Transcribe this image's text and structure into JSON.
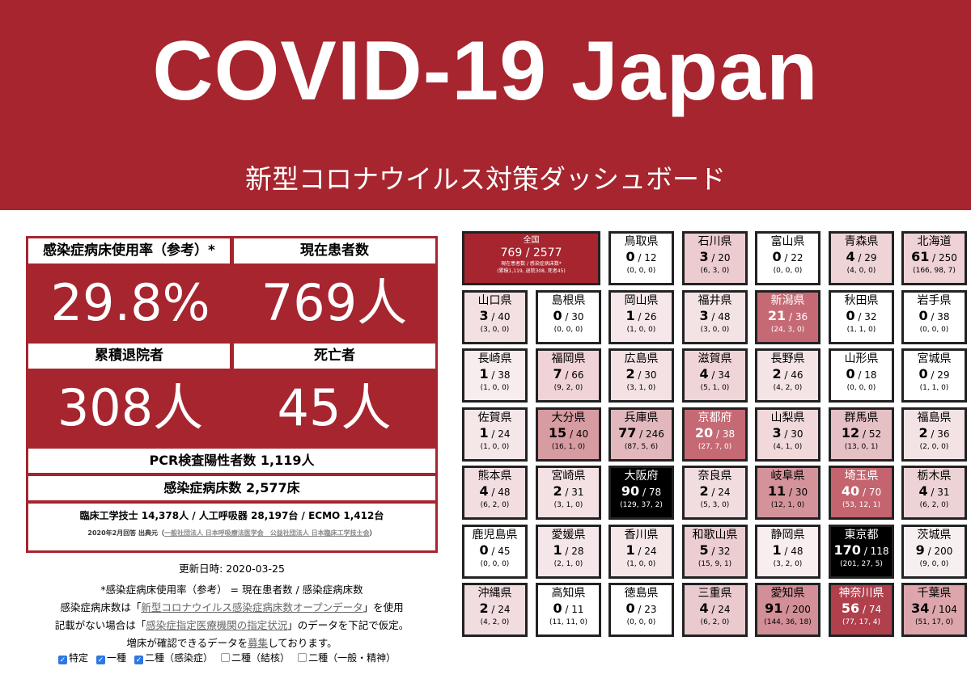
{
  "header": {
    "title": "COVID-19 Japan",
    "subtitle": "新型コロナウイルス対策ダッシュボード"
  },
  "stats": {
    "bed_rate_label": "感染症病床使用率（参考）*",
    "bed_rate_value": "29.8%",
    "current_patients_label": "現在患者数",
    "current_patients_value": "769人",
    "recovered_label": "累積退院者",
    "recovered_value": "308人",
    "deaths_label": "死亡者",
    "deaths_value": "45人",
    "pcr_line": "PCR検査陽性者数 1,119人",
    "beds_line": "感染症病床数 2,577床",
    "equipment_line": "臨床工学技士 14,378人 / 人工呼吸器 28,197台 / ECMO 1,412台",
    "source_prefix": "2020年2月回答 出典元（",
    "source_link": "一般社団法人 日本呼吸療法医学会　公益社団法人 日本臨床工学技士会",
    "source_suffix": "）"
  },
  "notes": {
    "updated": "更新日時: 2020-03-25",
    "line1": "*感染症病床使用率（参考） = 現在患者数 / 感染症病床数",
    "line2_prefix": "感染症病床数は「",
    "line2_link": "新型コロナウイルス感染症病床数オープンデータ",
    "line2_suffix": "」を使用",
    "line3_prefix": "記載がない場合は「",
    "line3_link": "感染症指定医療機関の指定状況",
    "line3_suffix": "」のデータを下記で仮定。",
    "line4_prefix": "増床が確認できるデータを",
    "line4_link": "募集",
    "line4_suffix": "しております。"
  },
  "checkboxes": [
    {
      "label": "特定",
      "checked": true
    },
    {
      "label": "一種",
      "checked": true
    },
    {
      "label": "二種（感染症）",
      "checked": true
    },
    {
      "label": "二種（結核）",
      "checked": false
    },
    {
      "label": "二種（一般・精神）",
      "checked": false
    }
  ],
  "national": {
    "name": "全国",
    "value": "769 / 2577",
    "caption": "現在患者数 / 感染症病床数*",
    "detail": "(累積1,119, 退院308, 死者45)"
  },
  "prefectures": [
    {
      "name": "鳥取県",
      "current": "0",
      "beds": "12",
      "detail": "(0, 0, 0)",
      "bg": "#ffffff",
      "fg": "#000000"
    },
    {
      "name": "石川県",
      "current": "3",
      "beds": "20",
      "detail": "(6, 3, 0)",
      "bg": "#ecccd0",
      "fg": "#000000"
    },
    {
      "name": "富山県",
      "current": "0",
      "beds": "22",
      "detail": "(0, 0, 0)",
      "bg": "#ffffff",
      "fg": "#000000"
    },
    {
      "name": "青森県",
      "current": "4",
      "beds": "29",
      "detail": "(4, 0, 0)",
      "bg": "#efd4d7",
      "fg": "#000000"
    },
    {
      "name": "北海道",
      "current": "61",
      "beds": "250",
      "detail": "(166, 98, 7)",
      "bg": "#eed2d5",
      "fg": "#000000"
    },
    {
      "name": "山口県",
      "current": "3",
      "beds": "40",
      "detail": "(3, 0, 0)",
      "bg": "#f3e0e2",
      "fg": "#000000"
    },
    {
      "name": "島根県",
      "current": "0",
      "beds": "30",
      "detail": "(0, 0, 0)",
      "bg": "#ffffff",
      "fg": "#000000"
    },
    {
      "name": "岡山県",
      "current": "1",
      "beds": "26",
      "detail": "(1, 0, 0)",
      "bg": "#f6e8ea",
      "fg": "#000000"
    },
    {
      "name": "福井県",
      "current": "3",
      "beds": "48",
      "detail": "(3, 0, 0)",
      "bg": "#f4e3e5",
      "fg": "#000000"
    },
    {
      "name": "新潟県",
      "current": "21",
      "beds": "36",
      "detail": "(24, 3, 0)",
      "bg": "#c56a74",
      "fg": "#ffffff"
    },
    {
      "name": "秋田県",
      "current": "0",
      "beds": "32",
      "detail": "(1, 1, 0)",
      "bg": "#ffffff",
      "fg": "#000000"
    },
    {
      "name": "岩手県",
      "current": "0",
      "beds": "38",
      "detail": "(0, 0, 0)",
      "bg": "#ffffff",
      "fg": "#000000"
    },
    {
      "name": "長崎県",
      "current": "1",
      "beds": "38",
      "detail": "(1, 0, 0)",
      "bg": "#f7ecee",
      "fg": "#000000"
    },
    {
      "name": "福岡県",
      "current": "7",
      "beds": "66",
      "detail": "(9, 2, 0)",
      "bg": "#efd3d6",
      "fg": "#000000"
    },
    {
      "name": "広島県",
      "current": "2",
      "beds": "30",
      "detail": "(3, 1, 0)",
      "bg": "#f3e1e3",
      "fg": "#000000"
    },
    {
      "name": "滋賀県",
      "current": "4",
      "beds": "34",
      "detail": "(5, 1, 0)",
      "bg": "#efd5d8",
      "fg": "#000000"
    },
    {
      "name": "長野県",
      "current": "2",
      "beds": "46",
      "detail": "(4, 2, 0)",
      "bg": "#f4e4e6",
      "fg": "#000000"
    },
    {
      "name": "山形県",
      "current": "0",
      "beds": "18",
      "detail": "(0, 0, 0)",
      "bg": "#ffffff",
      "fg": "#000000"
    },
    {
      "name": "宮城県",
      "current": "0",
      "beds": "29",
      "detail": "(1, 1, 0)",
      "bg": "#ffffff",
      "fg": "#000000"
    },
    {
      "name": "佐賀県",
      "current": "1",
      "beds": "24",
      "detail": "(1, 0, 0)",
      "bg": "#f5e6e8",
      "fg": "#000000"
    },
    {
      "name": "大分県",
      "current": "15",
      "beds": "40",
      "detail": "(16, 1, 0)",
      "bg": "#d79ba2",
      "fg": "#000000"
    },
    {
      "name": "兵庫県",
      "current": "77",
      "beds": "246",
      "detail": "(87, 5, 6)",
      "bg": "#e2b8bd",
      "fg": "#000000"
    },
    {
      "name": "京都府",
      "current": "20",
      "beds": "38",
      "detail": "(27, 7, 0)",
      "bg": "#c56a74",
      "fg": "#ffffff"
    },
    {
      "name": "山梨県",
      "current": "3",
      "beds": "30",
      "detail": "(4, 1, 0)",
      "bg": "#f0d8db",
      "fg": "#000000"
    },
    {
      "name": "群馬県",
      "current": "12",
      "beds": "52",
      "detail": "(13, 0, 1)",
      "bg": "#e5c0c4",
      "fg": "#000000"
    },
    {
      "name": "福島県",
      "current": "2",
      "beds": "36",
      "detail": "(2, 0, 0)",
      "bg": "#f4e3e5",
      "fg": "#000000"
    },
    {
      "name": "熊本県",
      "current": "4",
      "beds": "48",
      "detail": "(6, 2, 0)",
      "bg": "#f2dde0",
      "fg": "#000000"
    },
    {
      "name": "宮崎県",
      "current": "2",
      "beds": "31",
      "detail": "(3, 1, 0)",
      "bg": "#f3e1e3",
      "fg": "#000000"
    },
    {
      "name": "大阪府",
      "current": "90",
      "beds": "78",
      "detail": "(129, 37, 2)",
      "bg": "#000000",
      "fg": "#ffffff"
    },
    {
      "name": "奈良県",
      "current": "2",
      "beds": "24",
      "detail": "(5, 3, 0)",
      "bg": "#f1dcdf",
      "fg": "#000000"
    },
    {
      "name": "岐阜県",
      "current": "11",
      "beds": "30",
      "detail": "(12, 1, 0)",
      "bg": "#d4939b",
      "fg": "#000000"
    },
    {
      "name": "埼玉県",
      "current": "40",
      "beds": "70",
      "detail": "(53, 12, 1)",
      "bg": "#c4646f",
      "fg": "#ffffff"
    },
    {
      "name": "栃木県",
      "current": "4",
      "beds": "31",
      "detail": "(6, 2, 0)",
      "bg": "#eed3d6",
      "fg": "#000000"
    },
    {
      "name": "鹿児島県",
      "current": "0",
      "beds": "45",
      "detail": "(0, 0, 0)",
      "bg": "#ffffff",
      "fg": "#000000"
    },
    {
      "name": "愛媛県",
      "current": "1",
      "beds": "28",
      "detail": "(2, 1, 0)",
      "bg": "#f5e7e9",
      "fg": "#000000"
    },
    {
      "name": "香川県",
      "current": "1",
      "beds": "24",
      "detail": "(1, 0, 0)",
      "bg": "#f5e6e8",
      "fg": "#000000"
    },
    {
      "name": "和歌山県",
      "current": "5",
      "beds": "32",
      "detail": "(15, 9, 1)",
      "bg": "#eccdd1",
      "fg": "#000000"
    },
    {
      "name": "静岡県",
      "current": "1",
      "beds": "48",
      "detail": "(3, 2, 0)",
      "bg": "#f8eef0",
      "fg": "#000000"
    },
    {
      "name": "東京都",
      "current": "170",
      "beds": "118",
      "detail": "(201, 27, 5)",
      "bg": "#000000",
      "fg": "#ffffff"
    },
    {
      "name": "茨城県",
      "current": "9",
      "beds": "200",
      "detail": "(9, 0, 0)",
      "bg": "#f8eff0",
      "fg": "#000000"
    },
    {
      "name": "沖縄県",
      "current": "2",
      "beds": "24",
      "detail": "(4, 2, 0)",
      "bg": "#f1dcdf",
      "fg": "#000000"
    },
    {
      "name": "高知県",
      "current": "0",
      "beds": "11",
      "detail": "(11, 11, 0)",
      "bg": "#ffffff",
      "fg": "#000000"
    },
    {
      "name": "徳島県",
      "current": "0",
      "beds": "23",
      "detail": "(0, 0, 0)",
      "bg": "#ffffff",
      "fg": "#000000"
    },
    {
      "name": "三重県",
      "current": "4",
      "beds": "24",
      "detail": "(6, 2, 0)",
      "bg": "#eacacd",
      "fg": "#000000"
    },
    {
      "name": "愛知県",
      "current": "91",
      "beds": "200",
      "detail": "(144, 36, 18)",
      "bg": "#d28f97",
      "fg": "#000000"
    },
    {
      "name": "神奈川県",
      "current": "56",
      "beds": "74",
      "detail": "(77, 17, 4)",
      "bg": "#b0404c",
      "fg": "#ffffff"
    },
    {
      "name": "千葉県",
      "current": "34",
      "beds": "104",
      "detail": "(51, 17, 0)",
      "bg": "#dca6ac",
      "fg": "#000000"
    }
  ]
}
